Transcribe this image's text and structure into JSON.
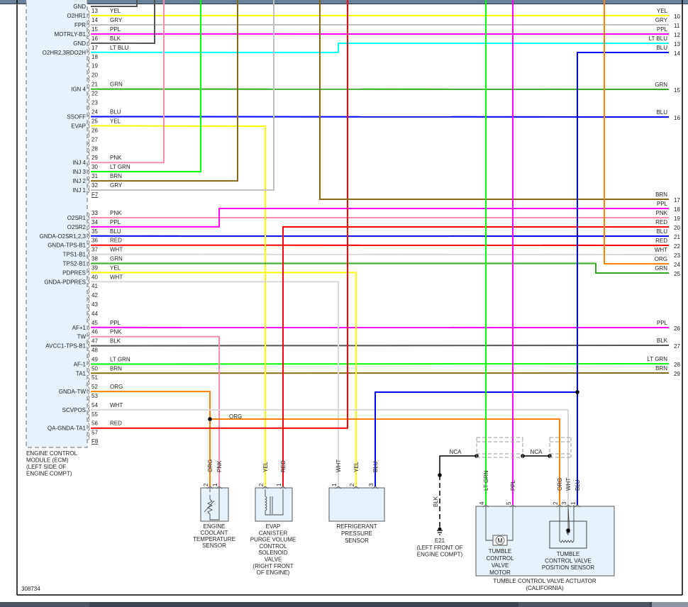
{
  "diagram_id": "308734",
  "wire_colors": {
    "YEL": "#ffff00",
    "GRY": "#c0c0c0",
    "PPL": "#ff00ff",
    "BLK": "#555555",
    "LT BLU": "#00ffff",
    "GRN": "#33aa22",
    "BLU": "#0000ff",
    "PNK": "#ff8fa8",
    "LT GRN": "#00ff00",
    "BRN": "#8b6914",
    "RED": "#ff0000",
    "WHT": "#d8d8d8",
    "ORG": "#ff8000"
  },
  "ecm": {
    "label": [
      "ENGINE CONTROL",
      "MODULE (ECM)",
      "(LEFT SIDE OF",
      "ENGINE COMPT)"
    ],
    "pins": [
      {
        "pin": "",
        "signal": "GND",
        "wire": "BLK"
      },
      {
        "pin": "13",
        "signal": "O2HR1",
        "wire": "YEL"
      },
      {
        "pin": "14",
        "signal": "FPR",
        "wire": "GRY"
      },
      {
        "pin": "15",
        "signal": "MOTRLY-B1",
        "wire": "PPL"
      },
      {
        "pin": "16",
        "signal": "GND",
        "wire": "BLK"
      },
      {
        "pin": "17",
        "signal": "O2HR2,3RDO2H",
        "wire": "LT BLU"
      },
      {
        "pin": "18",
        "signal": "",
        "wire": ""
      },
      {
        "pin": "19",
        "signal": "",
        "wire": ""
      },
      {
        "pin": "20",
        "signal": "",
        "wire": ""
      },
      {
        "pin": "21",
        "signal": "IGN 4",
        "wire": "GRN"
      },
      {
        "pin": "22",
        "signal": "",
        "wire": ""
      },
      {
        "pin": "23",
        "signal": "",
        "wire": ""
      },
      {
        "pin": "24",
        "signal": "SSOFF",
        "wire": "BLU"
      },
      {
        "pin": "25",
        "signal": "EVAP",
        "wire": "YEL"
      },
      {
        "pin": "26",
        "signal": "",
        "wire": ""
      },
      {
        "pin": "27",
        "signal": "",
        "wire": ""
      },
      {
        "pin": "28",
        "signal": "",
        "wire": ""
      },
      {
        "pin": "29",
        "signal": "INJ 4",
        "wire": "PNK"
      },
      {
        "pin": "30",
        "signal": "INJ 3",
        "wire": "LT GRN"
      },
      {
        "pin": "31",
        "signal": "INJ 2",
        "wire": "BRN"
      },
      {
        "pin": "32",
        "signal": "INJ 1",
        "wire": "GRY"
      },
      {
        "pin": "F7",
        "signal": "",
        "wire": ""
      },
      {
        "pin": "33",
        "signal": "O2SR1",
        "wire": "PNK"
      },
      {
        "pin": "34",
        "signal": "O2SR2",
        "wire": "PPL"
      },
      {
        "pin": "35",
        "signal": "GNDA-O2SR1,2,3",
        "wire": "BLU"
      },
      {
        "pin": "36",
        "signal": "GNDA-TPS-B1",
        "wire": "RED"
      },
      {
        "pin": "37",
        "signal": "TPS1-B1",
        "wire": "WHT"
      },
      {
        "pin": "38",
        "signal": "TPS2-B1",
        "wire": "GRN"
      },
      {
        "pin": "39",
        "signal": "PDPRES",
        "wire": "YEL"
      },
      {
        "pin": "40",
        "signal": "GNDA-PDPRES",
        "wire": "WHT"
      },
      {
        "pin": "41",
        "signal": "",
        "wire": ""
      },
      {
        "pin": "42",
        "signal": "",
        "wire": ""
      },
      {
        "pin": "43",
        "signal": "",
        "wire": ""
      },
      {
        "pin": "44",
        "signal": "",
        "wire": ""
      },
      {
        "pin": "45",
        "signal": "AF+1",
        "wire": "PPL"
      },
      {
        "pin": "46",
        "signal": "TW",
        "wire": "PNK"
      },
      {
        "pin": "47",
        "signal": "AVCC1-TPS-B1",
        "wire": "BLK"
      },
      {
        "pin": "48",
        "signal": "",
        "wire": ""
      },
      {
        "pin": "49",
        "signal": "AF-1",
        "wire": "LT GRN"
      },
      {
        "pin": "50",
        "signal": "TA1",
        "wire": "BRN"
      },
      {
        "pin": "51",
        "signal": "",
        "wire": ""
      },
      {
        "pin": "52",
        "signal": "GNDA-TW",
        "wire": "ORG"
      },
      {
        "pin": "53",
        "signal": "",
        "wire": ""
      },
      {
        "pin": "54",
        "signal": "SCVPOS",
        "wire": "WHT"
      },
      {
        "pin": "55",
        "signal": "",
        "wire": ""
      },
      {
        "pin": "56",
        "signal": "QA-GNDA-TA1",
        "wire": "RED"
      },
      {
        "pin": "57",
        "signal": "",
        "wire": ""
      },
      {
        "pin": "F8",
        "signal": "",
        "wire": ""
      }
    ]
  },
  "right_terminals": [
    {
      "num": "10",
      "wire": "YEL"
    },
    {
      "num": "11",
      "wire": "GRY"
    },
    {
      "num": "12",
      "wire": "PPL"
    },
    {
      "num": "13",
      "wire": "LT BLU"
    },
    {
      "num": "14",
      "wire": "BLU"
    },
    {
      "num": "15",
      "wire": "GRN"
    },
    {
      "num": "16",
      "wire": "BLU"
    },
    {
      "num": "17",
      "wire": "BRN"
    },
    {
      "num": "18",
      "wire": "PPL"
    },
    {
      "num": "19",
      "wire": "PNK"
    },
    {
      "num": "20",
      "wire": "RED"
    },
    {
      "num": "21",
      "wire": "BLU"
    },
    {
      "num": "22",
      "wire": "RED"
    },
    {
      "num": "23",
      "wire": "WHT"
    },
    {
      "num": "24",
      "wire": "ORG"
    },
    {
      "num": "25",
      "wire": "GRN"
    },
    {
      "num": "26",
      "wire": "PPL"
    },
    {
      "num": "27",
      "wire": "BLK"
    },
    {
      "num": "28",
      "wire": "LT GRN"
    },
    {
      "num": "29",
      "wire": "BRN"
    }
  ],
  "mid_wire_label": "ORG",
  "components": {
    "ect": {
      "label": [
        "ENGINE",
        "COOLANT",
        "TEMPERATURE",
        "SENSOR"
      ],
      "pins": [
        {
          "pin": "2",
          "wire": "ORG"
        },
        {
          "pin": "1",
          "wire": "PNK"
        }
      ]
    },
    "evap": {
      "label": [
        "EVAP",
        "CANISTER",
        "PURGE VOLUME",
        "CONTROL",
        "SOLENOID",
        "VALVE",
        "(RIGHT FRONT",
        "OF ENGINE)"
      ],
      "pins": [
        {
          "pin": "2",
          "wire": "YEL"
        },
        {
          "pin": "1",
          "wire": "RED"
        }
      ]
    },
    "refrig": {
      "label": [
        "REFRIGERANT",
        "PRESSURE",
        "SENSOR"
      ],
      "pins": [
        {
          "pin": "1",
          "wire": "WHT"
        },
        {
          "pin": "2",
          "wire": "YEL"
        },
        {
          "pin": "3",
          "wire": "BLU"
        }
      ]
    },
    "ground": {
      "wire": "BLK",
      "name": "E21",
      "label": [
        "(LEFT FRONT OF",
        "ENGINE COMPT)"
      ],
      "nca": [
        "NCA",
        "NCA"
      ]
    },
    "tumble": {
      "pins": [
        {
          "pin": "4",
          "wire": "LT GRN"
        },
        {
          "pin": "5",
          "wire": "PPL"
        },
        {
          "pin": "2",
          "wire": "ORG"
        },
        {
          "pin": "3",
          "wire": "WHT"
        },
        {
          "pin": "1",
          "wire": "BLU"
        }
      ],
      "motor_symbol": "M",
      "motor_label": [
        "TUMBLE",
        "CONTROL",
        "VALVE",
        "MOTOR"
      ],
      "sensor_label": [
        "TUMBLE",
        "CONTROL VALVE",
        "POSITION SENSOR"
      ],
      "label": [
        "TUMBLE CONTROL VALVE ACTUATOR",
        "(CALIFORNIA)"
      ]
    }
  }
}
